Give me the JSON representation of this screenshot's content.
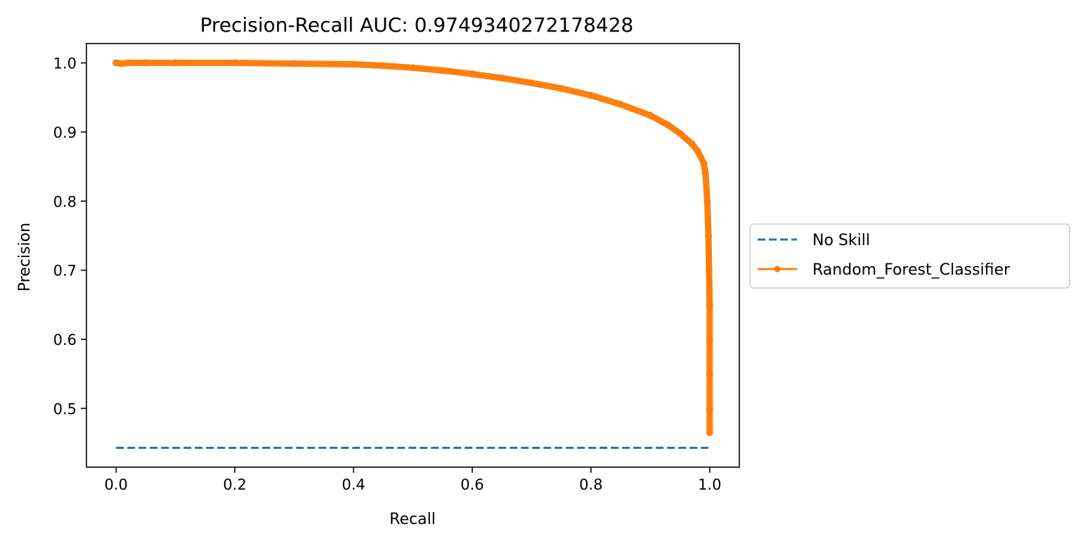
{
  "chart_data": {
    "type": "line",
    "title": "Precision-Recall AUC: 0.9749340272178428",
    "xlabel": "Recall",
    "ylabel": "Precision",
    "xlim": [
      -0.05,
      1.05
    ],
    "ylim": [
      0.415,
      1.028
    ],
    "xticks": [
      0.0,
      0.2,
      0.4,
      0.6,
      0.8,
      1.0
    ],
    "xtick_labels": [
      "0.0",
      "0.2",
      "0.4",
      "0.6",
      "0.8",
      "1.0"
    ],
    "yticks": [
      0.5,
      0.6,
      0.7,
      0.8,
      0.9,
      1.0
    ],
    "ytick_labels": [
      "0.5",
      "0.6",
      "0.7",
      "0.8",
      "0.9",
      "1.0"
    ],
    "grid": false,
    "legend_position": "outside-right",
    "series": [
      {
        "name": "No Skill",
        "style": "dashed",
        "marker": "none",
        "color": "#1f77b4",
        "x": [
          0.0,
          1.0
        ],
        "y": [
          0.443,
          0.443
        ]
      },
      {
        "name": "Random_Forest_Classifier",
        "style": "solid",
        "marker": "dot",
        "color": "#ff7f0e",
        "x": [
          0.0,
          0.01,
          0.02,
          0.05,
          0.1,
          0.2,
          0.3,
          0.4,
          0.45,
          0.5,
          0.55,
          0.6,
          0.65,
          0.7,
          0.75,
          0.8,
          0.85,
          0.9,
          0.93,
          0.95,
          0.97,
          0.98,
          0.99,
          0.993,
          0.996,
          0.998,
          0.999,
          1.0,
          1.0,
          1.0,
          1.0,
          1.0
        ],
        "y": [
          1.0,
          0.999,
          1.0,
          1.0,
          1.0,
          1.0,
          0.999,
          0.998,
          0.996,
          0.993,
          0.989,
          0.984,
          0.978,
          0.971,
          0.963,
          0.953,
          0.94,
          0.924,
          0.91,
          0.898,
          0.883,
          0.872,
          0.855,
          0.84,
          0.8,
          0.75,
          0.7,
          0.65,
          0.6,
          0.55,
          0.5,
          0.465
        ]
      }
    ]
  }
}
